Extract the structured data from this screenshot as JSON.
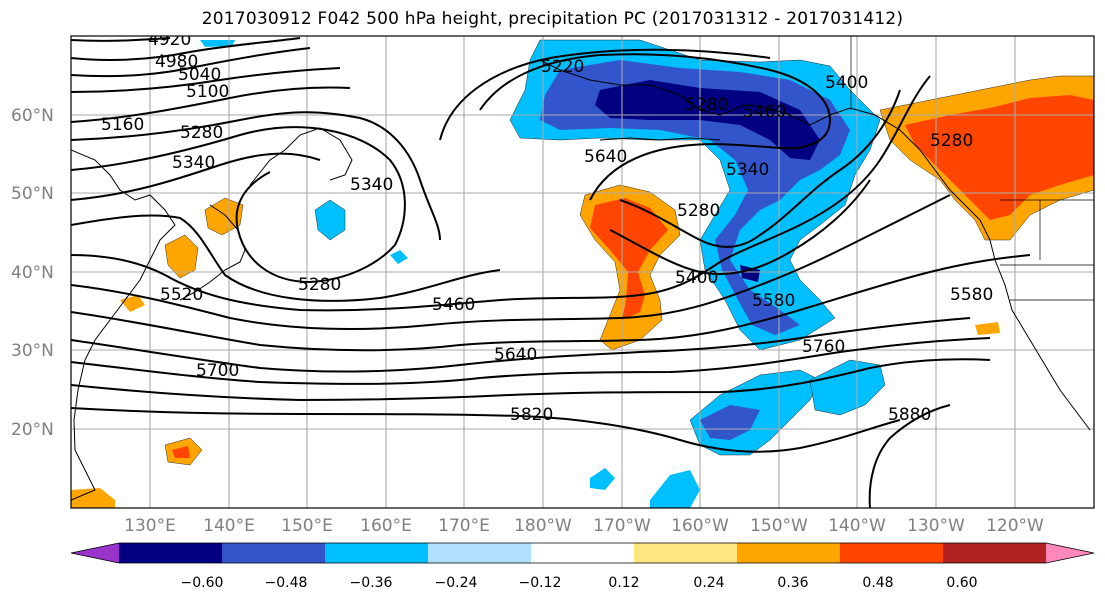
{
  "title": "2017030912 F042 500 hPa height, precipitation PC (2017031312 - 2017031412)",
  "map": {
    "projection": "cylindrical",
    "lon_range_east": [
      120,
      250
    ],
    "lat_range": [
      10,
      70
    ],
    "grid": true,
    "lat_labels": [
      "20°N",
      "30°N",
      "40°N",
      "50°N",
      "60°N"
    ],
    "lon_labels": [
      "130°E",
      "140°E",
      "150°E",
      "160°E",
      "170°E",
      "180°W",
      "170°W",
      "160°W",
      "150°W",
      "140°W",
      "130°W",
      "120°W"
    ],
    "contour_labels": [
      "4920",
      "4980",
      "5040",
      "5100",
      "5160",
      "5280",
      "5340",
      "5220",
      "5280",
      "5400",
      "5460",
      "5520",
      "5580",
      "5640",
      "5700",
      "5760",
      "5820",
      "5880",
      "5340",
      "5280",
      "5640",
      "5400",
      "5280",
      "5340",
      "5460",
      "5280",
      "5580"
    ]
  },
  "colorbar": {
    "colors": [
      "#9933cc",
      "#000080",
      "#3355cc",
      "#00bfff",
      "#b0e0ff",
      "#ffffff",
      "#ffe680",
      "#ffa500",
      "#ff4500",
      "#b22222",
      "#ff88bb"
    ],
    "tick_labels": [
      "−0.60",
      "−0.48",
      "−0.36",
      "−0.24",
      "−0.12",
      "0.12",
      "0.24",
      "0.36",
      "0.48",
      "0.60"
    ]
  }
}
